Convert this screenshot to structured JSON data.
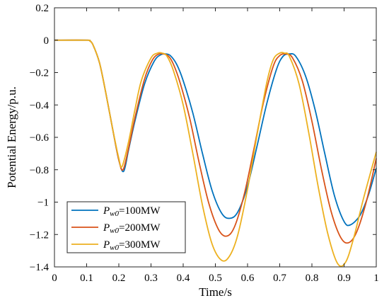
{
  "chart_data": {
    "type": "line",
    "xlabel": "Time/s",
    "ylabel": "Potential Energy/p.u.",
    "xlim": [
      0,
      1
    ],
    "ylim": [
      -1.4,
      0.2
    ],
    "xticks": [
      0,
      0.1,
      0.2,
      0.3,
      0.4,
      0.5,
      0.6,
      0.7,
      0.8,
      0.9,
      1
    ],
    "xtick_labels": [
      "0",
      "0.1",
      "0.2",
      "0.3",
      "0.4",
      "0.5",
      "0.6",
      "0.7",
      "0.8",
      "0.9",
      "1"
    ],
    "yticks": [
      0.2,
      0,
      -0.2,
      -0.4,
      -0.6,
      -0.8,
      -1,
      -1.2,
      -1.4
    ],
    "ytick_labels": [
      "0.2",
      "0",
      "−0.2",
      "−0.4",
      "−0.6",
      "−0.8",
      "−1",
      "−1.2",
      "−1.4"
    ],
    "grid": false,
    "legend_position": "bottom-left",
    "series": [
      {
        "name": "Pw0=100MW",
        "legend": {
          "sym": "P",
          "sub": "w0",
          "text": "=100MW"
        },
        "color": "#0072BD",
        "x": [
          0,
          0.1,
          0.11,
          0.12,
          0.14,
          0.16,
          0.18,
          0.2,
          0.215,
          0.23,
          0.25,
          0.28,
          0.31,
          0.33,
          0.345,
          0.36,
          0.38,
          0.4,
          0.43,
          0.46,
          0.49,
          0.52,
          0.545,
          0.57,
          0.6,
          0.63,
          0.66,
          0.69,
          0.71,
          0.73,
          0.75,
          0.78,
          0.81,
          0.84,
          0.87,
          0.9,
          0.92,
          0.95,
          0.975,
          1.0
        ],
        "y": [
          0,
          0,
          -0.005,
          -0.03,
          -0.14,
          -0.33,
          -0.54,
          -0.74,
          -0.81,
          -0.68,
          -0.5,
          -0.27,
          -0.13,
          -0.09,
          -0.085,
          -0.095,
          -0.15,
          -0.25,
          -0.45,
          -0.7,
          -0.93,
          -1.07,
          -1.1,
          -1.06,
          -0.9,
          -0.65,
          -0.39,
          -0.18,
          -0.1,
          -0.085,
          -0.1,
          -0.22,
          -0.43,
          -0.7,
          -0.96,
          -1.12,
          -1.14,
          -1.08,
          -0.96,
          -0.79
        ]
      },
      {
        "name": "Pw0=200MW",
        "legend": {
          "sym": "P",
          "sub": "w0",
          "text": "=200MW"
        },
        "color": "#D95319",
        "x": [
          0,
          0.1,
          0.11,
          0.12,
          0.14,
          0.16,
          0.18,
          0.2,
          0.213,
          0.23,
          0.25,
          0.28,
          0.305,
          0.325,
          0.34,
          0.355,
          0.37,
          0.39,
          0.42,
          0.45,
          0.48,
          0.51,
          0.535,
          0.56,
          0.59,
          0.62,
          0.65,
          0.68,
          0.7,
          0.72,
          0.74,
          0.77,
          0.8,
          0.83,
          0.86,
          0.89,
          0.915,
          0.94,
          0.97,
          1.0
        ],
        "y": [
          0,
          0,
          -0.005,
          -0.03,
          -0.14,
          -0.33,
          -0.54,
          -0.74,
          -0.8,
          -0.67,
          -0.48,
          -0.24,
          -0.12,
          -0.085,
          -0.085,
          -0.1,
          -0.15,
          -0.26,
          -0.48,
          -0.76,
          -1.01,
          -1.17,
          -1.21,
          -1.15,
          -0.95,
          -0.67,
          -0.38,
          -0.16,
          -0.095,
          -0.085,
          -0.11,
          -0.25,
          -0.5,
          -0.8,
          -1.06,
          -1.22,
          -1.25,
          -1.18,
          -0.99,
          -0.73
        ]
      },
      {
        "name": "Pw0=300MW",
        "legend": {
          "sym": "P",
          "sub": "w0",
          "text": "=300MW"
        },
        "color": "#EDB120",
        "x": [
          0,
          0.1,
          0.11,
          0.12,
          0.14,
          0.16,
          0.18,
          0.2,
          0.21,
          0.23,
          0.25,
          0.27,
          0.3,
          0.32,
          0.335,
          0.35,
          0.37,
          0.4,
          0.43,
          0.46,
          0.49,
          0.52,
          0.545,
          0.57,
          0.6,
          0.63,
          0.66,
          0.68,
          0.7,
          0.715,
          0.73,
          0.76,
          0.79,
          0.82,
          0.85,
          0.88,
          0.905,
          0.93,
          0.96,
          1.0
        ],
        "y": [
          0,
          0,
          -0.005,
          -0.03,
          -0.14,
          -0.33,
          -0.54,
          -0.73,
          -0.78,
          -0.63,
          -0.43,
          -0.25,
          -0.11,
          -0.08,
          -0.08,
          -0.1,
          -0.19,
          -0.4,
          -0.7,
          -1.02,
          -1.26,
          -1.36,
          -1.33,
          -1.2,
          -0.92,
          -0.58,
          -0.26,
          -0.12,
          -0.08,
          -0.08,
          -0.1,
          -0.27,
          -0.57,
          -0.91,
          -1.2,
          -1.38,
          -1.37,
          -1.22,
          -0.98,
          -0.69
        ]
      }
    ]
  }
}
